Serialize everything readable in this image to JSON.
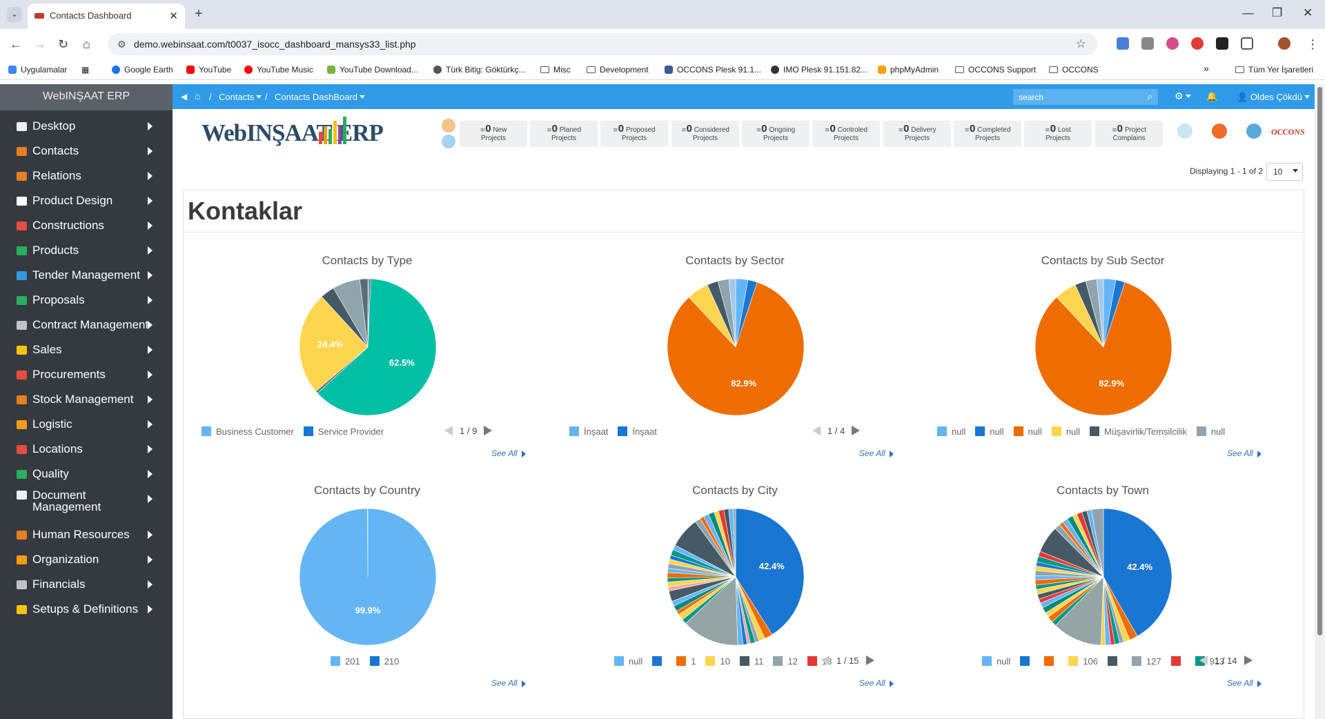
{
  "browser": {
    "tab_title": "Contacts Dashboard",
    "url": "demo.webinsaat.com/t0037_isocc_dashboard_mansys33_list.php",
    "bookmarks": [
      {
        "label": "Uygulamalar",
        "color": "#4285f4"
      },
      {
        "label": "Google Earth",
        "color": "#1a73e8"
      },
      {
        "label": "YouTube",
        "color": "#ff0000"
      },
      {
        "label": "YouTube Music",
        "color": "#ff0000"
      },
      {
        "label": "YouTube Download...",
        "color": "#7cb342"
      },
      {
        "label": "Türk Bitig: Göktürkç...",
        "color": "#555555"
      },
      {
        "label": "Misc",
        "color": "folder"
      },
      {
        "label": "Development",
        "color": "folder"
      },
      {
        "label": "OCCONS Plesk 91.1...",
        "color": "#3b5998"
      },
      {
        "label": "IMO Plesk 91.151.82...",
        "color": "#333333"
      },
      {
        "label": "phpMyAdmin",
        "color": "#f4a300"
      },
      {
        "label": "OCCONS Support",
        "color": "folder"
      },
      {
        "label": "OCCONS",
        "color": "folder"
      }
    ],
    "bookmarks_all": "Tüm Yer İşaretleri",
    "bookmarks_more": "»"
  },
  "app": {
    "brand": "WebINŞAAT ERP",
    "logo_text": "WebINŞAAT ERP",
    "sidebar": [
      {
        "label": "Desktop",
        "icon_color": "#f0f0f0"
      },
      {
        "label": "Contacts",
        "icon_color": "#e67e22"
      },
      {
        "label": "Relations",
        "icon_color": "#e67e22"
      },
      {
        "label": "Product Design",
        "icon_color": "#ffffff"
      },
      {
        "label": "Constructions",
        "icon_color": "#e74c3c"
      },
      {
        "label": "Products",
        "icon_color": "#27ae60"
      },
      {
        "label": "Tender Management",
        "icon_color": "#3498db"
      },
      {
        "label": "Proposals",
        "icon_color": "#27ae60"
      },
      {
        "label": "Contract Management",
        "icon_color": "#bdc3c7"
      },
      {
        "label": "Sales",
        "icon_color": "#f1c40f"
      },
      {
        "label": "Procurements",
        "icon_color": "#e74c3c"
      },
      {
        "label": "Stock Management",
        "icon_color": "#e67e22"
      },
      {
        "label": "Logistic",
        "icon_color": "#f39c12"
      },
      {
        "label": "Locations",
        "icon_color": "#e74c3c"
      },
      {
        "label": "Quality",
        "icon_color": "#27ae60"
      },
      {
        "label": "Document Management",
        "icon_color": "#ecf0f1",
        "two_line": true
      },
      {
        "label": "Human Resources",
        "icon_color": "#e67e22"
      },
      {
        "label": "Organization",
        "icon_color": "#f39c12"
      },
      {
        "label": "Financials",
        "icon_color": "#bdc3c7"
      },
      {
        "label": "Setups & Definitions",
        "icon_color": "#f1c40f"
      }
    ],
    "topnav": {
      "crumb1": "Contacts",
      "crumb2": "Contacts DashBoard",
      "sep": "/",
      "search_placeholder": "search",
      "user": "Oldes Çökdü"
    },
    "stats": [
      {
        "count": "0",
        "l1": "New",
        "l2": "Projects"
      },
      {
        "count": "0",
        "l1": "Planed",
        "l2": "Projects"
      },
      {
        "count": "0",
        "l1": "Proposed",
        "l2": "Projects"
      },
      {
        "count": "0",
        "l1": "Considered",
        "l2": "Projects"
      },
      {
        "count": "0",
        "l1": "Ongoing",
        "l2": "Projects"
      },
      {
        "count": "0",
        "l1": "Controled",
        "l2": "Projects"
      },
      {
        "count": "0",
        "l1": "Delivery",
        "l2": "Projects"
      },
      {
        "count": "0",
        "l1": "Completed",
        "l2": "Projects"
      },
      {
        "count": "0",
        "l1": "Lost",
        "l2": "Projects"
      },
      {
        "count": "0",
        "l1": "Project",
        "l2": "Complains"
      }
    ],
    "stat_prefix": "≅",
    "display_text": "Displaying 1 - 1 of 2",
    "page_size": "10",
    "panel_title": "Kontaklar",
    "see_all": "See All",
    "brand_right": "OCCONS"
  },
  "chart_data": [
    {
      "type": "pie",
      "title": "Contacts by Type",
      "slices": [
        {
          "label": "Business Customer",
          "value": 0.3,
          "color": "#e65c00"
        },
        {
          "label": "Service Provider",
          "value": 0.4,
          "color": "#1976d2"
        },
        {
          "label": "",
          "value": 62.5,
          "color": "#00bfa5",
          "show": "62.5%"
        },
        {
          "label": "",
          "value": 0.6,
          "color": "#607080"
        },
        {
          "label": "",
          "value": 24.4,
          "color": "#ffd54f",
          "show": "24.4%"
        },
        {
          "label": "",
          "value": 3.4,
          "color": "#455a64"
        },
        {
          "label": "",
          "value": 6.5,
          "color": "#90a4ae"
        },
        {
          "label": "",
          "value": 1.9,
          "color": "#546e7a"
        }
      ],
      "legend": [
        {
          "label": "Business Customer",
          "color": "#64b5f6"
        },
        {
          "label": "Service Provider",
          "color": "#1976d2"
        }
      ],
      "pager": "1 / 9"
    },
    {
      "type": "pie",
      "title": "Contacts by Sector",
      "slices": [
        {
          "label": "İnşaat",
          "value": 2.9,
          "color": "#64b5f6"
        },
        {
          "label": "İnşaat",
          "value": 2.2,
          "color": "#1976d2"
        },
        {
          "label": "",
          "value": 82.9,
          "color": "#ef6c00",
          "show": "82.9%"
        },
        {
          "label": "",
          "value": 5.2,
          "color": "#ffd54f"
        },
        {
          "label": "",
          "value": 2.6,
          "color": "#455a64"
        },
        {
          "label": "",
          "value": 2.6,
          "color": "#90a4ae"
        },
        {
          "label": "",
          "value": 1.6,
          "color": "#9ec9f0"
        }
      ],
      "legend": [
        {
          "label": "İnşaat",
          "color": "#64b5f6"
        },
        {
          "label": "İnşaat",
          "color": "#1976d2"
        }
      ],
      "pager": "1 / 4"
    },
    {
      "type": "pie",
      "title": "Contacts by Sub Sector",
      "slices": [
        {
          "label": "null",
          "value": 2.9,
          "color": "#64b5f6"
        },
        {
          "label": "null",
          "value": 2.2,
          "color": "#1976d2"
        },
        {
          "label": "null",
          "value": 82.9,
          "color": "#ef6c00",
          "show": "82.9%"
        },
        {
          "label": "null",
          "value": 5.2,
          "color": "#ffd54f"
        },
        {
          "label": "Müşavirlik/Temsilcilik",
          "value": 2.6,
          "color": "#455a64"
        },
        {
          "label": "null",
          "value": 2.6,
          "color": "#90a4ae"
        },
        {
          "label": "",
          "value": 1.6,
          "color": "#9ec9f0"
        }
      ],
      "legend": [
        {
          "label": "null",
          "color": "#64b5f6"
        },
        {
          "label": "null",
          "color": "#1976d2"
        },
        {
          "label": "null",
          "color": "#ef6c00"
        },
        {
          "label": "null",
          "color": "#ffd54f"
        },
        {
          "label": "Müşavirlik/Temsilcilik",
          "color": "#455a64"
        },
        {
          "label": "null",
          "color": "#90a4ae"
        }
      ],
      "pager": ""
    },
    {
      "type": "pie",
      "title": "Contacts by Country",
      "slices": [
        {
          "label": "201",
          "value": 99.9,
          "color": "#64b5f6",
          "show": "99.9%"
        },
        {
          "label": "210",
          "value": 0.1,
          "color": "#1976d2"
        }
      ],
      "legend": [
        {
          "label": "201",
          "color": "#64b5f6"
        },
        {
          "label": "210",
          "color": "#1976d2"
        }
      ],
      "pager": ""
    },
    {
      "type": "pie",
      "title": "Contacts by City",
      "slices": [
        {
          "label": "",
          "value": 42.4,
          "color": "#1976d2",
          "show": "42.4%"
        },
        {
          "label": "",
          "value": 2.0,
          "color": "#ef6c00"
        },
        {
          "label": "",
          "value": 1.5,
          "color": "#ffd54f"
        },
        {
          "label": "",
          "value": 1.0,
          "color": "#90a4ae"
        },
        {
          "label": "",
          "value": 1.2,
          "color": "#009688"
        },
        {
          "label": "",
          "value": 0.8,
          "color": "#f4a6a6"
        },
        {
          "label": "",
          "value": 1.0,
          "color": "#1976d2"
        },
        {
          "label": "",
          "value": 1.3,
          "color": "#64b5f6"
        },
        {
          "label": "",
          "value": 14.0,
          "color": "#95a5a6"
        },
        {
          "label": "",
          "value": 1.2,
          "color": "#009688"
        },
        {
          "label": "",
          "value": 1.5,
          "color": "#ffd54f"
        },
        {
          "label": "",
          "value": 1.0,
          "color": "#ef6c00"
        },
        {
          "label": "",
          "value": 1.4,
          "color": "#00897b"
        },
        {
          "label": "",
          "value": 1.2,
          "color": "#64b5f6"
        },
        {
          "label": "",
          "value": 2.6,
          "color": "#455a64"
        },
        {
          "label": "",
          "value": 1.0,
          "color": "#f4a6a6"
        },
        {
          "label": "",
          "value": 1.2,
          "color": "#ffd54f"
        },
        {
          "label": "",
          "value": 1.0,
          "color": "#009688"
        },
        {
          "label": "",
          "value": 1.3,
          "color": "#ef6c00"
        },
        {
          "label": "",
          "value": 1.0,
          "color": "#64b5f6"
        },
        {
          "label": "",
          "value": 1.2,
          "color": "#90a4ae"
        },
        {
          "label": "",
          "value": 1.1,
          "color": "#ffd54f"
        },
        {
          "label": "",
          "value": 1.0,
          "color": "#1976d2"
        },
        {
          "label": "",
          "value": 1.4,
          "color": "#009688"
        },
        {
          "label": "",
          "value": 1.2,
          "color": "#64b5f6"
        },
        {
          "label": "",
          "value": 7.5,
          "color": "#455a64"
        },
        {
          "label": "",
          "value": 1.4,
          "color": "#90a4ae"
        },
        {
          "label": "",
          "value": 1.0,
          "color": "#ef6c00"
        },
        {
          "label": "",
          "value": 1.3,
          "color": "#64b5f6"
        },
        {
          "label": "",
          "value": 1.4,
          "color": "#00897b"
        },
        {
          "label": "",
          "value": 1.1,
          "color": "#ffd54f"
        },
        {
          "label": "",
          "value": 1.3,
          "color": "#e53935"
        },
        {
          "label": "",
          "value": 1.2,
          "color": "#455a64"
        },
        {
          "label": "",
          "value": 1.1,
          "color": "#64b5f6"
        },
        {
          "label": "",
          "value": 0.6,
          "color": "#90a4ae"
        }
      ],
      "legend": [
        {
          "label": "null",
          "color": "#64b5f6"
        },
        {
          "label": "",
          "color": "#1976d2"
        },
        {
          "label": "1",
          "color": "#ef6c00"
        },
        {
          "label": "10",
          "color": "#ffd54f"
        },
        {
          "label": "11",
          "color": "#455a64"
        },
        {
          "label": "12",
          "color": "#90a4ae"
        },
        {
          "label": "13",
          "color": "#e53935"
        }
      ],
      "pager": "1 / 15"
    },
    {
      "type": "pie",
      "title": "Contacts by Town",
      "slices": [
        {
          "label": "",
          "value": 42.4,
          "color": "#1976d2",
          "show": "42.4%"
        },
        {
          "label": "",
          "value": 2.0,
          "color": "#ef6c00"
        },
        {
          "label": "",
          "value": 1.5,
          "color": "#ffd54f"
        },
        {
          "label": "",
          "value": 1.0,
          "color": "#90a4ae"
        },
        {
          "label": "",
          "value": 1.2,
          "color": "#009688"
        },
        {
          "label": "",
          "value": 1.0,
          "color": "#e53935"
        },
        {
          "label": "",
          "value": 1.3,
          "color": "#64b5f6"
        },
        {
          "label": "",
          "value": 1.0,
          "color": "#ffd54f"
        },
        {
          "label": "",
          "value": 12.0,
          "color": "#95a5a6"
        },
        {
          "label": "",
          "value": 1.2,
          "color": "#009688"
        },
        {
          "label": "",
          "value": 1.4,
          "color": "#ef6c00"
        },
        {
          "label": "",
          "value": 1.2,
          "color": "#ffd54f"
        },
        {
          "label": "",
          "value": 1.4,
          "color": "#00897b"
        },
        {
          "label": "",
          "value": 1.2,
          "color": "#64b5f6"
        },
        {
          "label": "",
          "value": 1.0,
          "color": "#e53935"
        },
        {
          "label": "",
          "value": 1.2,
          "color": "#455a64"
        },
        {
          "label": "",
          "value": 1.2,
          "color": "#ffd54f"
        },
        {
          "label": "",
          "value": 1.0,
          "color": "#009688"
        },
        {
          "label": "",
          "value": 1.3,
          "color": "#ef6c00"
        },
        {
          "label": "",
          "value": 1.0,
          "color": "#64b5f6"
        },
        {
          "label": "",
          "value": 1.2,
          "color": "#90a4ae"
        },
        {
          "label": "",
          "value": 1.1,
          "color": "#ffd54f"
        },
        {
          "label": "",
          "value": 1.0,
          "color": "#1976d2"
        },
        {
          "label": "",
          "value": 1.4,
          "color": "#009688"
        },
        {
          "label": "",
          "value": 1.2,
          "color": "#e53935"
        },
        {
          "label": "",
          "value": 6.5,
          "color": "#455a64"
        },
        {
          "label": "",
          "value": 1.4,
          "color": "#90a4ae"
        },
        {
          "label": "",
          "value": 1.0,
          "color": "#ef6c00"
        },
        {
          "label": "",
          "value": 1.3,
          "color": "#64b5f6"
        },
        {
          "label": "",
          "value": 1.4,
          "color": "#00897b"
        },
        {
          "label": "",
          "value": 1.1,
          "color": "#ffd54f"
        },
        {
          "label": "",
          "value": 1.3,
          "color": "#e53935"
        },
        {
          "label": "",
          "value": 1.2,
          "color": "#455a64"
        },
        {
          "label": "",
          "value": 1.1,
          "color": "#64b5f6"
        },
        {
          "label": "",
          "value": 2.9,
          "color": "#90a4ae"
        }
      ],
      "legend": [
        {
          "label": "null",
          "color": "#64b5f6"
        },
        {
          "label": "",
          "color": "#1976d2"
        },
        {
          "label": "",
          "color": "#ef6c00"
        },
        {
          "label": "106",
          "color": "#ffd54f"
        },
        {
          "label": "",
          "color": "#455a64"
        },
        {
          "label": "127",
          "color": "#90a4ae"
        },
        {
          "label": "",
          "color": "#e53935"
        },
        {
          "label": "913",
          "color": "#009688"
        }
      ],
      "pager": "1 / 14"
    }
  ]
}
